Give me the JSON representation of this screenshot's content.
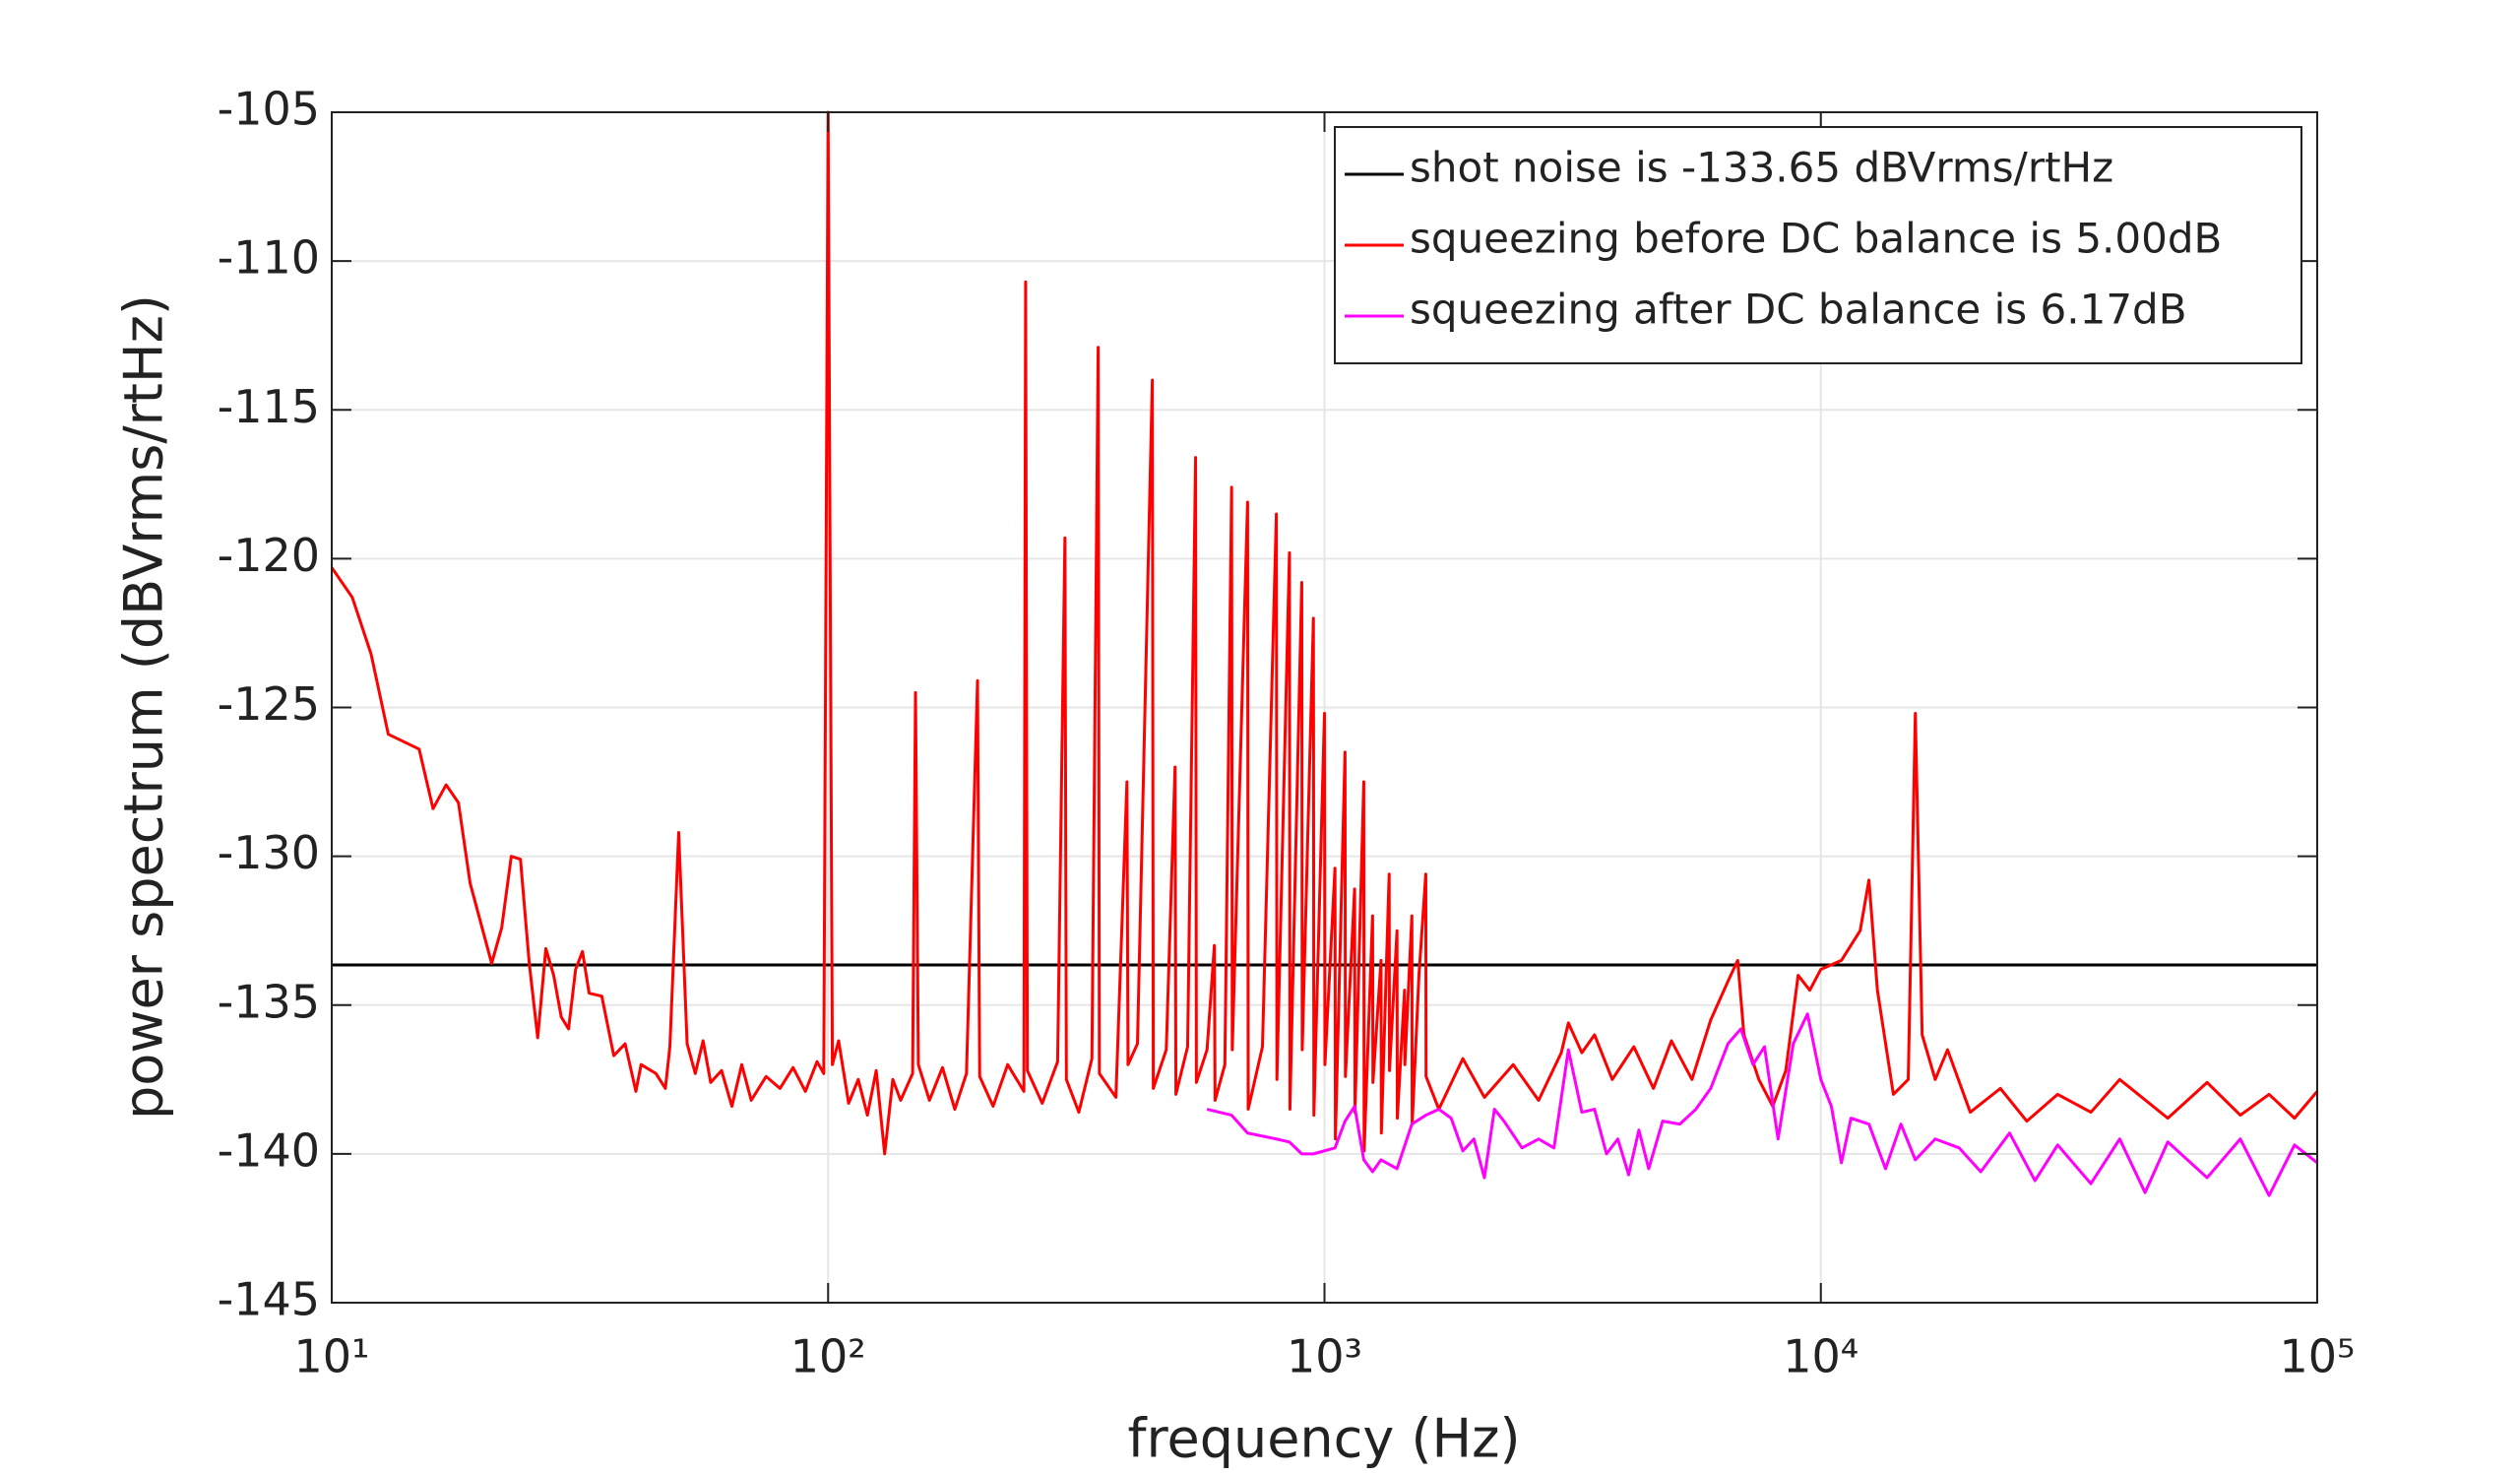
{
  "chart_data": {
    "type": "line",
    "xlabel": "frequency (Hz)",
    "ylabel": "power spectrum (dBVrms/rtHz)",
    "xscale": "log",
    "xlim": [
      10,
      100000
    ],
    "xticks": [
      {
        "value": 10,
        "label": "10¹"
      },
      {
        "value": 100,
        "label": "10²"
      },
      {
        "value": 1000,
        "label": "10³"
      },
      {
        "value": 10000,
        "label": "10⁴"
      },
      {
        "value": 100000,
        "label": "10⁵"
      }
    ],
    "ylim": [
      -145,
      -105
    ],
    "yticks": [
      -145,
      -140,
      -135,
      -130,
      -125,
      -120,
      -115,
      -110,
      -105
    ],
    "grid": true,
    "legend": "upper right",
    "series": [
      {
        "name": "shot noise is -133.65 dBVrms/rtHz",
        "color": "#000000",
        "x": [
          10,
          100000
        ],
        "values": [
          -133.65,
          -133.65
        ]
      },
      {
        "name": "squeezing before DC balance is 5.00dB",
        "color": "#ff0000",
        "x": [
          10,
          11,
          12,
          13,
          15,
          16,
          17,
          18,
          19,
          21,
          22,
          23,
          24,
          25,
          26,
          27,
          28,
          29,
          30,
          31,
          32,
          33,
          35,
          37,
          39,
          41,
          42,
          45,
          47,
          48,
          50,
          52,
          54,
          56,
          58,
          61,
          64,
          67,
          70,
          75,
          80,
          85,
          90,
          95,
          98,
          100,
          102,
          105,
          110,
          115,
          120,
          125,
          130,
          135,
          140,
          148,
          150,
          152,
          160,
          170,
          180,
          190,
          200,
          202,
          215,
          230,
          248,
          250,
          252,
          270,
          290,
          300,
          302,
          320,
          340,
          350,
          352,
          380,
          400,
          402,
          420,
          450,
          452,
          480,
          500,
          502,
          530,
          550,
          552,
          580,
          600,
          602,
          630,
          650,
          652,
          700,
          702,
          750,
          800,
          802,
          850,
          852,
          900,
          902,
          950,
          952,
          1000,
          1002,
          1050,
          1052,
          1100,
          1102,
          1150,
          1152,
          1200,
          1202,
          1250,
          1252,
          1300,
          1302,
          1350,
          1352,
          1400,
          1402,
          1450,
          1452,
          1500,
          1502,
          1550,
          1600,
          1602,
          1700,
          1900,
          2100,
          2400,
          2700,
          3000,
          3100,
          3300,
          3500,
          3800,
          4200,
          4600,
          5000,
          5500,
          6000,
          6500,
          6800,
          7000,
          7500,
          8000,
          8500,
          9000,
          9500,
          10000,
          11000,
          12000,
          12500,
          13000,
          14000,
          15000,
          15500,
          16000,
          17000,
          18000,
          20000,
          23000,
          26000,
          30000,
          35000,
          40000,
          50000,
          60000,
          70000,
          80000,
          90000,
          100000
        ],
        "values": [
          -120.3,
          -121.3,
          -123.2,
          -125.9,
          -126.4,
          -128.4,
          -127.6,
          -128.2,
          -130.9,
          -133.6,
          -132.4,
          -130,
          -130.1,
          -133.6,
          -136.1,
          -133.1,
          -134,
          -135.4,
          -135.8,
          -133.8,
          -133.2,
          -134.6,
          -134.7,
          -136.7,
          -136.3,
          -137.9,
          -137,
          -137.3,
          -137.8,
          -136.4,
          -129.2,
          -136.3,
          -137.3,
          -136.2,
          -137.6,
          -137.2,
          -138.4,
          -137,
          -138.2,
          -137.4,
          -137.8,
          -137.1,
          -137.9,
          -136.9,
          -137.3,
          -105,
          -137,
          -136.2,
          -138.3,
          -137.5,
          -138.7,
          -137.2,
          -140,
          -137.5,
          -138.2,
          -137.3,
          -124.5,
          -137,
          -138.2,
          -137.1,
          -138.5,
          -137.3,
          -124.1,
          -137.4,
          -138.4,
          -137,
          -137.9,
          -110.7,
          -137.2,
          -138.3,
          -136.9,
          -119.3,
          -137.5,
          -138.6,
          -136.8,
          -112.9,
          -137.3,
          -138.1,
          -127.5,
          -137,
          -136.3,
          -114,
          -137.8,
          -136.5,
          -127,
          -138,
          -136.4,
          -116.6,
          -137.6,
          -136.5,
          -133,
          -138.2,
          -137,
          -117.6,
          -136.5,
          -118.1,
          -138.5,
          -136.4,
          -118.5,
          -137.5,
          -119.8,
          -138.5,
          -120.8,
          -136.5,
          -122,
          -138.7,
          -125.2,
          -137,
          -130.4,
          -139.5,
          -126.5,
          -137.4,
          -131.1,
          -138.6,
          -127.5,
          -139.9,
          -132,
          -137.6,
          -133.5,
          -139.3,
          -130.6,
          -137.2,
          -132.5,
          -138.8,
          -134.5,
          -137,
          -132,
          -139,
          -134,
          -130.6,
          -137.4,
          -138.5,
          -136.8,
          -138.1,
          -137,
          -138.2,
          -136.6,
          -135.6,
          -136.6,
          -136,
          -137.5,
          -136.4,
          -137.8,
          -136.2,
          -137.5,
          -135.5,
          -134.2,
          -133.5,
          -136,
          -137.5,
          -138.4,
          -137.2,
          -134,
          -134.5,
          -133.8,
          -133.5,
          -132.5,
          -130.8,
          -134.5,
          -138,
          -137.5,
          -125.2,
          -136,
          -137.5,
          -136.5,
          -138.6,
          -137.8,
          -138.9,
          -138,
          -138.6,
          -137.5,
          -138.8,
          -137.6,
          -138.7,
          -138,
          -138.8,
          -137.9
        ]
      },
      {
        "name": "squeezing after DC balance is 6.17dB",
        "color": "#ff00ff",
        "x": [
          580,
          650,
          700,
          800,
          850,
          900,
          950,
          1050,
          1100,
          1150,
          1200,
          1250,
          1300,
          1400,
          1500,
          1600,
          1700,
          1800,
          1900,
          2000,
          2100,
          2200,
          2300,
          2500,
          2700,
          2900,
          3100,
          3300,
          3500,
          3700,
          3900,
          4100,
          4300,
          4500,
          4800,
          5200,
          5600,
          6000,
          6500,
          6900,
          7300,
          7700,
          8200,
          8800,
          9400,
          10000,
          10500,
          11000,
          11500,
          12500,
          13500,
          14500,
          15500,
          17000,
          19000,
          21000,
          24000,
          27000,
          30000,
          35000,
          40000,
          45000,
          50000,
          60000,
          70000,
          80000,
          90000,
          100000
        ],
        "values": [
          -138.5,
          -138.7,
          -139.3,
          -139.5,
          -139.6,
          -140,
          -140,
          -139.8,
          -138.9,
          -138.4,
          -140.2,
          -140.6,
          -140.2,
          -140.5,
          -139,
          -138.7,
          -138.5,
          -138.8,
          -139.9,
          -139.5,
          -140.8,
          -138.5,
          -138.9,
          -139.8,
          -139.5,
          -139.8,
          -136.5,
          -138.6,
          -138.5,
          -140,
          -139.5,
          -140.7,
          -139.2,
          -140.5,
          -138.9,
          -139,
          -138.5,
          -137.8,
          -136.3,
          -135.8,
          -137,
          -136.4,
          -139.5,
          -136.3,
          -135.3,
          -137.5,
          -138.4,
          -140.3,
          -138.8,
          -139,
          -140.5,
          -139,
          -140.2,
          -139.5,
          -139.8,
          -140.6,
          -139.3,
          -140.9,
          -139.7,
          -141,
          -139.5,
          -141.3,
          -139.6,
          -140.8,
          -139.5,
          -141.4,
          -139.7,
          -140.3
        ]
      }
    ]
  }
}
